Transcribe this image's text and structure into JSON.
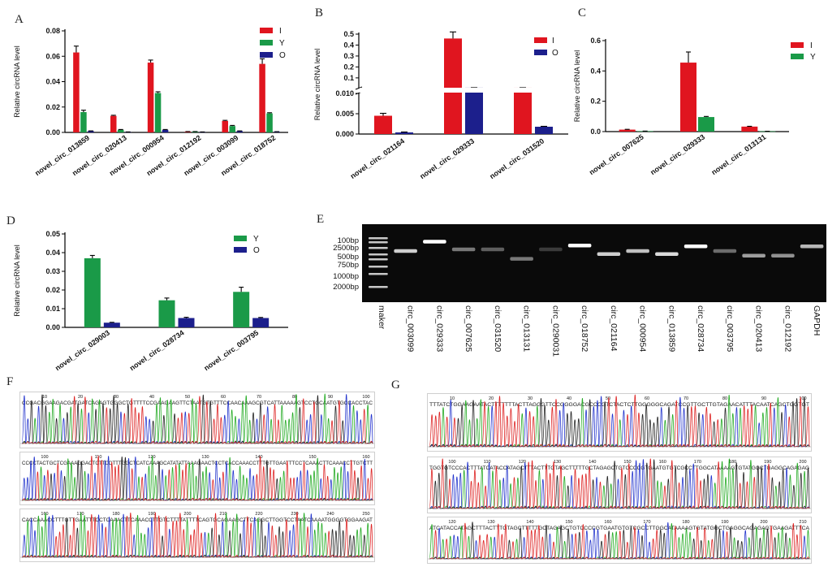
{
  "colors": {
    "I": "#e0151f",
    "Y": "#1a9a48",
    "O": "#1c1f8c",
    "trace_green": "#22aa22",
    "trace_red": "#dd2222",
    "trace_blue": "#2233cc",
    "trace_black": "#222222"
  },
  "panels": {
    "A": "A",
    "B": "B",
    "C": "C",
    "D": "D",
    "E": "E",
    "F": "F",
    "G": "G"
  },
  "chart_data": [
    {
      "panel": "A",
      "type": "bar",
      "ylabel": "Relative circRNA level",
      "ylim": [
        0,
        0.08
      ],
      "yticks": [
        "0.00",
        "0.02",
        "0.04",
        "0.06",
        "0.08"
      ],
      "categories": [
        "novel_circ_013859",
        "novel_circ_020413",
        "novel_circ_000954",
        "novel_circ_012192",
        "novel_circ_003099",
        "novel_circ_018752"
      ],
      "series": [
        {
          "name": "I",
          "values": [
            0.063,
            0.013,
            0.055,
            0.0005,
            0.009,
            0.054
          ],
          "errors": [
            0.005,
            0.0005,
            0.002,
            0.0002,
            0.0005,
            0.004
          ]
        },
        {
          "name": "Y",
          "values": [
            0.016,
            0.002,
            0.031,
            0.0005,
            0.005,
            0.015
          ],
          "errors": [
            0.0015,
            0.0003,
            0.001,
            0.0002,
            0.0005,
            0.0005
          ]
        },
        {
          "name": "O",
          "values": [
            0.001,
            0.0003,
            0.002,
            0.0003,
            0.001,
            0.0005
          ],
          "errors": [
            0.0002,
            0.0001,
            0.0003,
            0.0001,
            0.0002,
            0.0001
          ]
        }
      ],
      "legend": "top-right"
    },
    {
      "panel": "B",
      "type": "bar",
      "ylabel": "Relative circRNA level",
      "broken_axis": true,
      "ylim_low": [
        0,
        0.01
      ],
      "yticks_low": [
        "0.000",
        "0.005",
        "0.010"
      ],
      "ylim_high": [
        0.01,
        0.5
      ],
      "yticks_high": [
        "0.1",
        "0.2",
        "0.3",
        "0.4",
        "0.5"
      ],
      "categories": [
        "novel_circ_021164",
        "novel_circ_029333",
        "novel_circ_031520"
      ],
      "series": [
        {
          "name": "I",
          "values": [
            0.0045,
            0.46,
            0.0103
          ],
          "errors": [
            0.0006,
            0.06,
            0.0001
          ]
        },
        {
          "name": "O",
          "values": [
            0.0004,
            0.0106,
            0.0018
          ],
          "errors": [
            0.0001,
            0.0001,
            0.0001
          ]
        }
      ],
      "legend": "top-right"
    },
    {
      "panel": "C",
      "type": "bar",
      "ylabel": "Relative circRNA level",
      "ylim": [
        0,
        0.6
      ],
      "yticks": [
        "0.0",
        "0.2",
        "0.4",
        "0.6"
      ],
      "categories": [
        "novel_circ_007625",
        "novel_circ_029333",
        "novel_circ_013131"
      ],
      "series": [
        {
          "name": "I",
          "values": [
            0.013,
            0.455,
            0.033
          ],
          "errors": [
            0.002,
            0.07,
            0.002
          ]
        },
        {
          "name": "Y",
          "values": [
            0.003,
            0.096,
            0.002
          ],
          "errors": [
            0.0005,
            0.004,
            0.0003
          ]
        }
      ],
      "legend": "top-right"
    },
    {
      "panel": "D",
      "type": "bar",
      "ylabel": "Relative circRNA level",
      "ylim": [
        0,
        0.05
      ],
      "yticks": [
        "0.00",
        "0.01",
        "0.02",
        "0.03",
        "0.04",
        "0.05"
      ],
      "categories": [
        "novel_circ_029003",
        "novel_circ_028734",
        "novel_circ_003795"
      ],
      "series": [
        {
          "name": "Y",
          "values": [
            0.037,
            0.0145,
            0.019
          ],
          "errors": [
            0.0015,
            0.0012,
            0.0025
          ]
        },
        {
          "name": "O",
          "values": [
            0.0025,
            0.005,
            0.005
          ],
          "errors": [
            0.0002,
            0.0004,
            0.0003
          ]
        }
      ],
      "legend": "top-right"
    }
  ],
  "gel": {
    "size_labels": [
      "100bp",
      "2500bp",
      "500bp",
      "750bp",
      "1000bp",
      "2000bp"
    ],
    "lanes": [
      "maker",
      "circ_003099",
      "circ_029333",
      "circ_007625",
      "circ_031520",
      "circ_013131",
      "circ_0290031",
      "circ_018752",
      "circ_021164",
      "circ_000954",
      "circ_013859",
      "circ_028734",
      "circ_003795",
      "circ_020413",
      "circ_012192",
      "GAPDH"
    ],
    "band_intensity": [
      1,
      0.8,
      1.0,
      0.45,
      0.35,
      0.45,
      0.2,
      1.0,
      0.8,
      0.75,
      0.85,
      1.0,
      0.4,
      0.6,
      0.55,
      0.7
    ],
    "band_level": [
      0,
      0.32,
      0.2,
      0.3,
      0.3,
      0.42,
      0.3,
      0.25,
      0.36,
      0.32,
      0.36,
      0.26,
      0.32,
      0.38,
      0.38,
      0.26
    ]
  },
  "sequences": {
    "F_row1_seq": "CCGACGGAAGACGATGATCAGAGTGGGCTGTTTTCCGAAGAAGTTCTAATGTGTTTCCAACAAAGCGTCATTAAAAAGTCCTGCAATGTGCCACCTAC",
    "F_row1_nums": [
      "10",
      "20",
      "30",
      "40",
      "50",
      "60",
      "70",
      "80",
      "90",
      "100"
    ],
    "F_row2_seq": "CCCCTACTGCTCGAAAGGACTCTTCCTTTGGCTCATCAAAGCATATATTAAAGAACTCCTCACCAAACCTTTGTTGAATTTCCTCAAACTTCAAACCTTGTCTT",
    "F_row2_nums": [
      "100",
      "110",
      "120",
      "130",
      "140",
      "150",
      "160"
    ],
    "F_row3_seq": "CACCAAACCTTTGTTGAATTTCCTCAAACTTCAAACCTTGTCTTTTATTTTCAGTGCAGAAGCTTCAGGCTTGGTCCTAATCAAAATGGGGTGGAAGAT",
    "F_row3_nums": [
      "160",
      "170",
      "180",
      "190",
      "200",
      "210",
      "220",
      "230",
      "240",
      "250"
    ],
    "G_row1_seq": "TTTATCTGGAAGAATACTTTTTTTACTTAGGGTTCCGGGGACGCCCGTCTACTCTTGGGGGCAGATCCGTTGCTTGTAGAACATTTACAATCAGCTGGTGT",
    "G_row1_nums": [
      "10",
      "20",
      "30",
      "40",
      "50",
      "60",
      "70",
      "80",
      "90",
      "100"
    ],
    "G_row2_seq": "TGGTGTCCCACTTTATCATACCATAGCTTTACTTTGTAGCTTTTTGCTAGAGCTGTCCCCGTGAATGTGTCGCCTTGGCATAAAAGTGTATGGCTGAGGCAGAGAG",
    "G_row2_nums": [
      "100",
      "110",
      "120",
      "130",
      "140",
      "150",
      "160",
      "170",
      "180",
      "190",
      "200"
    ],
    "G_row3_seq": "ATCATACCATAGCTTTACTTTGTAGCTTTTTGCTAGAGCTGTCCCCGTGAATGTGTCGCCTTGGCATAAAAGTGTATGGCTGAGGCAGAGAGTGAAGATTTCA",
    "G_row3_nums": [
      "120",
      "130",
      "140",
      "150",
      "160",
      "170",
      "180",
      "190",
      "200",
      "210"
    ]
  }
}
